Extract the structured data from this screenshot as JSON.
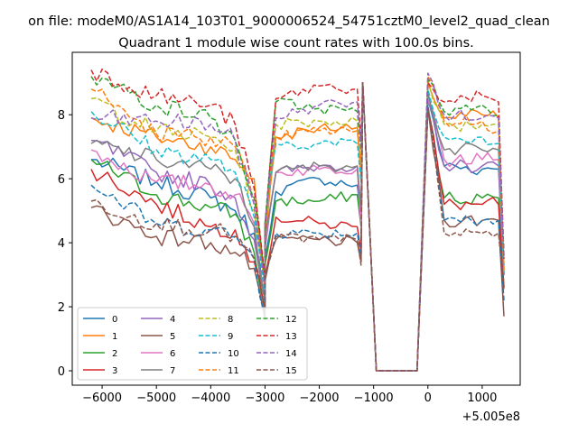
{
  "figure": {
    "suptitle": "on file: modeM0/AS1A14_103T01_9000006524_54751cztM0_level2_quad_clean",
    "title": "Quadrant 1 module wise count rates with 100.0s bins.",
    "x_offset_label": "+5.005e8"
  },
  "chart_data": {
    "type": "line",
    "title": "Quadrant 1 module wise count rates with 100.0s bins.",
    "xlabel": "",
    "ylabel": "",
    "x_offset": 500500000,
    "xlim": [
      -6550,
      1700
    ],
    "ylim": [
      -0.45,
      9.95
    ],
    "xticks": [
      -6000,
      -5000,
      -4000,
      -3000,
      -2000,
      -1000,
      0,
      1000
    ],
    "xtick_labels": [
      "−6000",
      "−5000",
      "−4000",
      "−3000",
      "−2000",
      "−1000",
      "0",
      "1000"
    ],
    "yticks": [
      0,
      2,
      4,
      6,
      8
    ],
    "ytick_labels": [
      "0",
      "2",
      "4",
      "6",
      "8"
    ],
    "grid": false,
    "legend_location": "lower left",
    "legend_columns": 4,
    "x": {
      "seg1": [
        -6200,
        -5000,
        -4000,
        -3550,
        -3200,
        -3000
      ],
      "seg2": [
        -3000,
        -2800,
        -2000,
        -1300,
        -1230,
        -1200
      ],
      "gap": [
        -1200,
        -950,
        -200,
        0
      ],
      "seg3": [
        0,
        300,
        1000,
        1300,
        1400
      ]
    },
    "series": [
      {
        "name": "0",
        "color": "#1f77b4",
        "dash": "solid",
        "seg1": [
          6.6,
          5.9,
          5.4,
          5.0,
          4.3,
          2.1
        ],
        "seg2": [
          3.5,
          5.6,
          6.0,
          5.8,
          4.8,
          9.0
        ],
        "seg3": [
          8.5,
          6.4,
          6.3,
          6.3,
          3.0
        ]
      },
      {
        "name": "1",
        "color": "#ff7f0e",
        "dash": "solid",
        "seg1": [
          7.9,
          7.3,
          7.0,
          6.6,
          6.0,
          2.5
        ],
        "seg2": [
          4.0,
          7.3,
          7.6,
          7.6,
          6.0,
          9.0
        ],
        "seg3": [
          9.0,
          7.9,
          8.0,
          7.9,
          3.0
        ]
      },
      {
        "name": "2",
        "color": "#2ca02c",
        "dash": "solid",
        "seg1": [
          6.6,
          5.5,
          5.1,
          4.9,
          3.7,
          1.9
        ],
        "seg2": [
          3.3,
          5.3,
          5.3,
          5.5,
          4.5,
          9.0
        ],
        "seg3": [
          8.2,
          5.4,
          5.4,
          5.4,
          2.6
        ]
      },
      {
        "name": "3",
        "color": "#d62728",
        "dash": "solid",
        "seg1": [
          6.3,
          5.2,
          4.5,
          4.4,
          3.4,
          1.8
        ],
        "seg2": [
          2.9,
          4.8,
          4.6,
          4.5,
          3.7,
          9.0
        ],
        "seg3": [
          8.2,
          5.2,
          5.2,
          5.2,
          2.6
        ]
      },
      {
        "name": "4",
        "color": "#9467bd",
        "dash": "solid",
        "seg1": [
          7.2,
          6.2,
          5.8,
          5.4,
          4.1,
          2.2
        ],
        "seg2": [
          3.8,
          6.2,
          6.4,
          6.4,
          5.0,
          9.0
        ],
        "seg3": [
          8.5,
          6.4,
          6.4,
          6.4,
          3.0
        ]
      },
      {
        "name": "5",
        "color": "#8c564b",
        "dash": "solid",
        "seg1": [
          5.1,
          4.2,
          4.0,
          3.7,
          3.2,
          1.6
        ],
        "seg2": [
          2.8,
          4.1,
          4.1,
          4.0,
          3.4,
          9.0
        ],
        "seg3": [
          8.2,
          4.7,
          4.7,
          4.7,
          1.7
        ]
      },
      {
        "name": "6",
        "color": "#e377c2",
        "dash": "solid",
        "seg1": [
          6.9,
          5.9,
          5.8,
          5.5,
          4.6,
          2.3
        ],
        "seg2": [
          4.0,
          6.2,
          6.3,
          6.3,
          4.5,
          9.0
        ],
        "seg3": [
          8.5,
          6.6,
          6.6,
          6.6,
          3.2
        ]
      },
      {
        "name": "7",
        "color": "#7f7f7f",
        "dash": "solid",
        "seg1": [
          7.1,
          6.6,
          6.3,
          6.0,
          4.5,
          2.2
        ],
        "seg2": [
          4.2,
          6.2,
          6.4,
          6.4,
          5.0,
          9.0
        ],
        "seg3": [
          8.7,
          6.9,
          6.9,
          6.9,
          3.3
        ]
      },
      {
        "name": "8",
        "color": "#bcbd22",
        "dash": "dash",
        "seg1": [
          8.5,
          7.5,
          7.3,
          6.9,
          5.0,
          2.7
        ],
        "seg2": [
          4.3,
          7.7,
          7.8,
          7.8,
          6.4,
          9.0
        ],
        "seg3": [
          9.1,
          7.7,
          7.7,
          7.7,
          3.1
        ]
      },
      {
        "name": "9",
        "color": "#17becf",
        "dash": "dash",
        "seg1": [
          8.1,
          6.9,
          6.6,
          6.2,
          4.8,
          2.4
        ],
        "seg2": [
          4.6,
          7.1,
          7.1,
          7.1,
          5.9,
          9.0
        ],
        "seg3": [
          8.8,
          7.3,
          7.3,
          7.1,
          3.0
        ]
      },
      {
        "name": "10",
        "color": "#1f77b4",
        "dash": "dash",
        "seg1": [
          5.8,
          4.6,
          4.4,
          4.2,
          3.5,
          1.7
        ],
        "seg2": [
          3.0,
          4.3,
          4.3,
          4.3,
          3.6,
          9.0
        ],
        "seg3": [
          8.3,
          4.7,
          4.7,
          4.7,
          2.2
        ]
      },
      {
        "name": "11",
        "color": "#ff7f0e",
        "dash": "dash",
        "seg1": [
          8.8,
          7.4,
          7.3,
          7.0,
          5.2,
          2.7
        ],
        "seg2": [
          4.6,
          7.3,
          7.5,
          7.5,
          6.4,
          9.0
        ],
        "seg3": [
          9.2,
          7.8,
          7.8,
          7.5,
          3.1
        ]
      },
      {
        "name": "12",
        "color": "#2ca02c",
        "dash": "dash",
        "seg1": [
          9.2,
          8.3,
          7.9,
          7.2,
          5.4,
          2.8
        ],
        "seg2": [
          4.6,
          8.4,
          8.2,
          8.1,
          6.9,
          9.0
        ],
        "seg3": [
          9.1,
          8.1,
          8.3,
          8.0,
          3.6
        ]
      },
      {
        "name": "13",
        "color": "#d62728",
        "dash": "dash",
        "seg1": [
          9.4,
          8.6,
          8.3,
          7.7,
          5.7,
          2.9
        ],
        "seg2": [
          4.4,
          8.5,
          8.9,
          8.8,
          7.2,
          9.0
        ],
        "seg3": [
          9.0,
          8.4,
          8.6,
          8.4,
          3.5
        ]
      },
      {
        "name": "14",
        "color": "#9467bd",
        "dash": "dash",
        "seg1": [
          7.9,
          7.8,
          7.7,
          7.2,
          5.2,
          2.7
        ],
        "seg2": [
          4.6,
          7.9,
          8.3,
          8.4,
          6.9,
          9.0
        ],
        "seg3": [
          9.3,
          8.0,
          7.9,
          7.9,
          3.5
        ]
      },
      {
        "name": "15",
        "color": "#8c564b",
        "dash": "dash",
        "seg1": [
          5.3,
          4.6,
          4.4,
          4.2,
          3.5,
          1.8
        ],
        "seg2": [
          3.0,
          4.2,
          4.1,
          4.1,
          3.3,
          9.0
        ],
        "seg3": [
          8.2,
          4.3,
          4.3,
          4.3,
          2.5
        ]
      }
    ],
    "gap_values": [
      0,
      0,
      0,
      0
    ]
  }
}
